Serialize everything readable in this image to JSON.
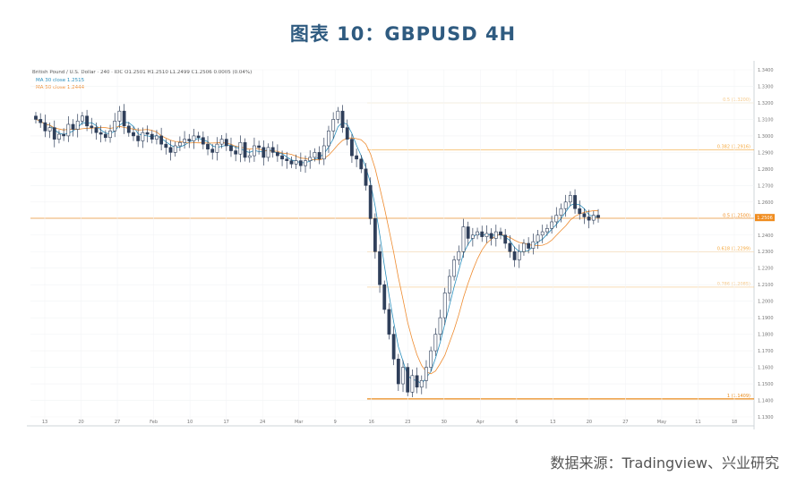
{
  "title": "图表 10：GBPUSD 4H",
  "source": "数据来源：Tradingview、兴业研究",
  "chart_data": {
    "type": "candlestick",
    "header": "British Pound / U.S. Dollar · 240 · IDC  O1.2501 H1.2510 L1.2499 C1.2506 0.0005 (0.04%)",
    "legend": [
      "MA 30 close 1.2515",
      "MA 50 close 1.2444"
    ],
    "price_badge": "1.2506",
    "y_ticks": [
      "1.3400",
      "1.3300",
      "1.3200",
      "1.3100",
      "1.3000",
      "1.2900",
      "1.2800",
      "1.2700",
      "1.2600",
      "1.2500",
      "1.2400",
      "1.2300",
      "1.2200",
      "1.2100",
      "1.2000",
      "1.1900",
      "1.1800",
      "1.1700",
      "1.1600",
      "1.1500",
      "1.1400",
      "1.1300"
    ],
    "x_ticks": [
      "13",
      "20",
      "27",
      "Feb",
      "10",
      "17",
      "24",
      "Mar",
      "9",
      "16",
      "23",
      "30",
      "Apr",
      "6",
      "13",
      "20",
      "27",
      "May",
      "11",
      "18"
    ],
    "levels": [
      {
        "label": "0.5 (1.3200)",
        "value": 1.32,
        "color": "#f5c98a"
      },
      {
        "label": "0.382 (1.2916)",
        "value": 1.2916,
        "color": "#f5a93f"
      },
      {
        "label": "0.5 (1.2500)",
        "value": 1.25,
        "color": "#f08c1e"
      },
      {
        "label": "0.618 (1.2299)",
        "value": 1.2299,
        "color": "#f5a93f"
      },
      {
        "label": "0.786 (1.2085)",
        "value": 1.2085,
        "color": "#f5c98a"
      },
      {
        "label": "1 (1.1409)",
        "value": 1.1409,
        "color": "#e88a1a"
      }
    ],
    "close_series": [
      1.31,
      1.308,
      1.303,
      1.305,
      1.298,
      1.301,
      1.3,
      1.307,
      1.304,
      1.309,
      1.312,
      1.306,
      1.305,
      1.302,
      1.301,
      1.299,
      1.303,
      1.309,
      1.315,
      1.306,
      1.302,
      1.3,
      1.297,
      1.302,
      1.301,
      1.298,
      1.3,
      1.295,
      1.293,
      1.29,
      1.294,
      1.296,
      1.298,
      1.297,
      1.3,
      1.299,
      1.295,
      1.292,
      1.29,
      1.295,
      1.298,
      1.294,
      1.291,
      1.289,
      1.296,
      1.287,
      1.288,
      1.294,
      1.293,
      1.287,
      1.293,
      1.29,
      1.288,
      1.286,
      1.285,
      1.283,
      1.285,
      1.282,
      1.285,
      1.287,
      1.29,
      1.286,
      1.294,
      1.303,
      1.31,
      1.315,
      1.305,
      1.298,
      1.288,
      1.286,
      1.28,
      1.27,
      1.25,
      1.23,
      1.21,
      1.195,
      1.18,
      1.165,
      1.15,
      1.16,
      1.145,
      1.155,
      1.148,
      1.152,
      1.16,
      1.17,
      1.18,
      1.19,
      1.205,
      1.215,
      1.225,
      1.23,
      1.245,
      1.238,
      1.24,
      1.242,
      1.239,
      1.241,
      1.238,
      1.242,
      1.24,
      1.235,
      1.23,
      1.225,
      1.23,
      1.235,
      1.232,
      1.236,
      1.24,
      1.242,
      1.244,
      1.248,
      1.252,
      1.256,
      1.26,
      1.264,
      1.256,
      1.253,
      1.251,
      1.249,
      1.252,
      1.2506
    ]
  }
}
